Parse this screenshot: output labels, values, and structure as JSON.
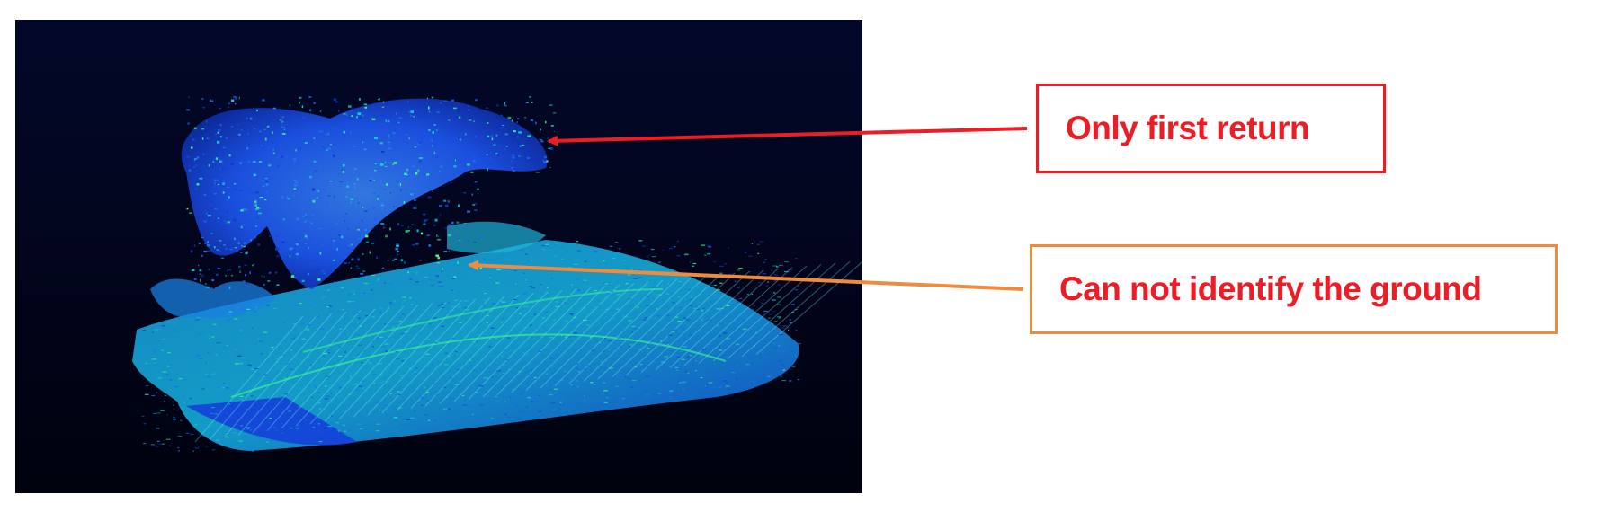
{
  "colors": {
    "panel_background": "#020520",
    "first_return_color": "#ee1c25",
    "ground_color": "#f08a3c",
    "label_text_color": "#ee1c25",
    "points_primary": "#1e5cff",
    "points_secondary": "#19d2e0",
    "points_highlight": "#3dff8a"
  },
  "image": {
    "description_icon": "lidar-point-cloud-image"
  },
  "annotations": [
    {
      "label": "Only first return"
    },
    {
      "label": "Can not identify the ground"
    }
  ]
}
